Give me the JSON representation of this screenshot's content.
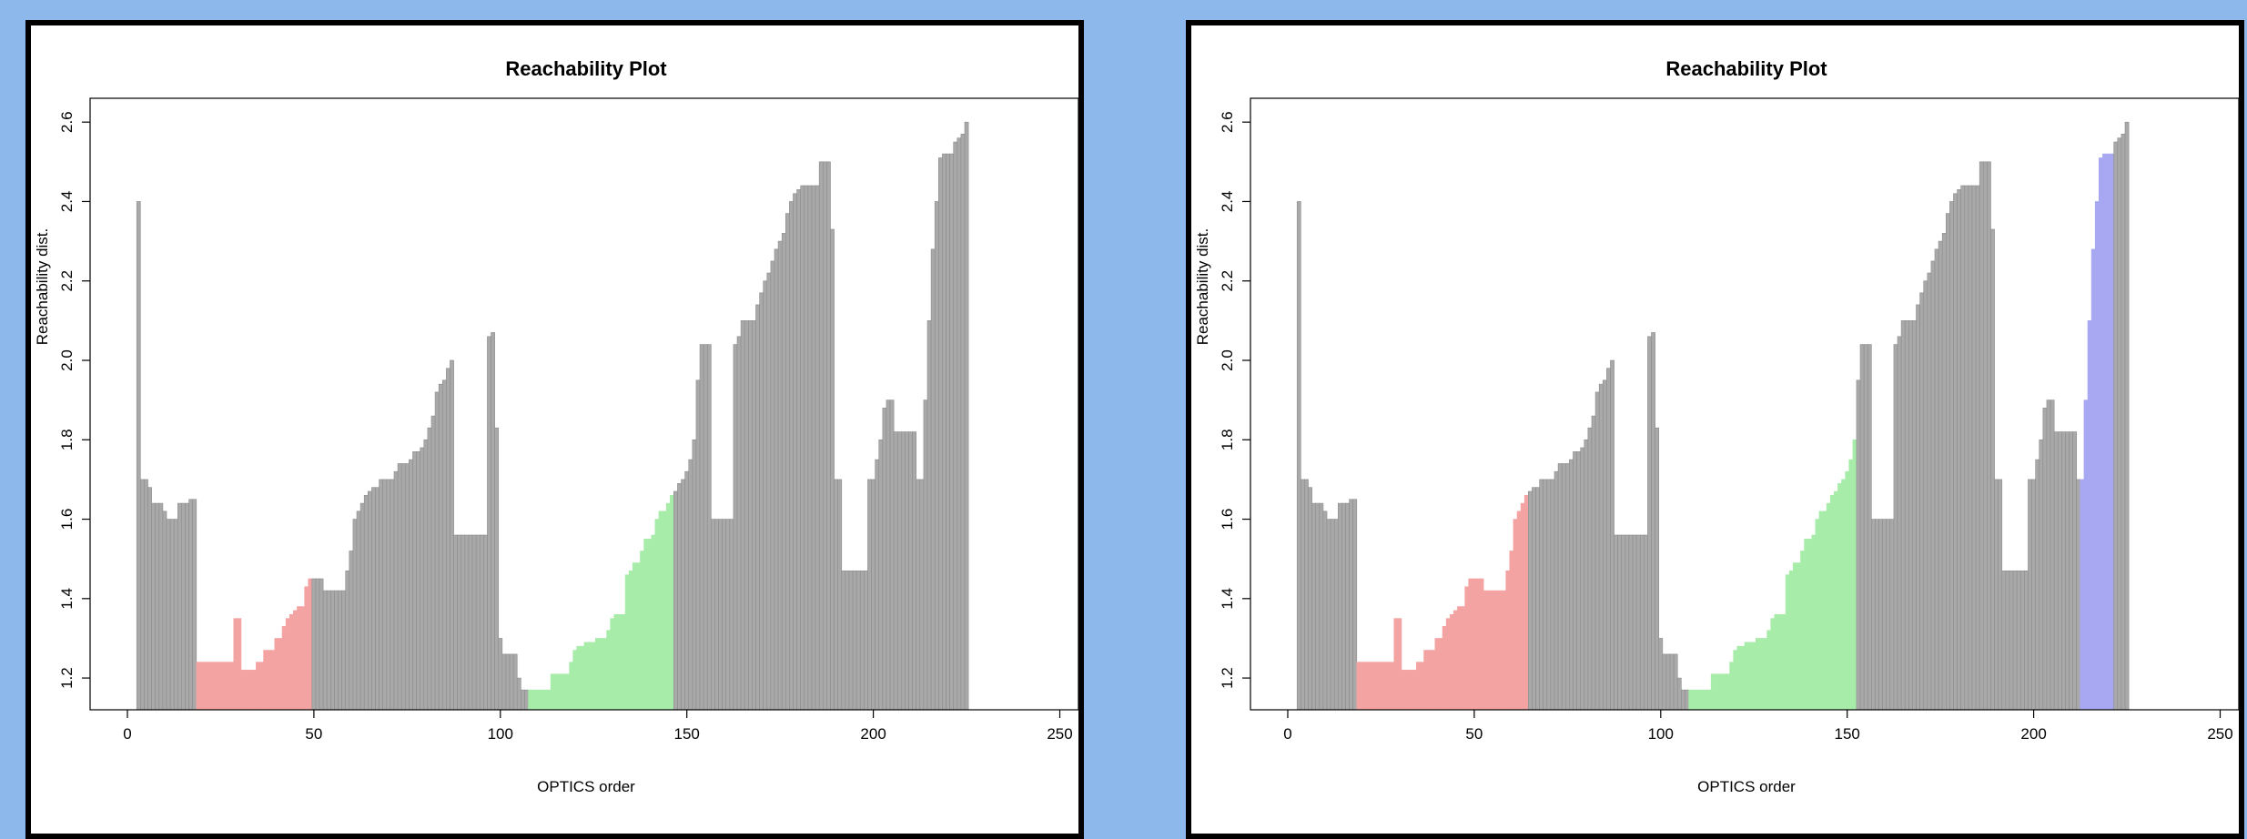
{
  "chart_data": [
    {
      "type": "bar",
      "title": "Reachability Plot",
      "xlabel": "OPTICS order",
      "ylabel": "Reachability dist.",
      "xlim": [
        -10,
        255
      ],
      "ylim": [
        1.12,
        2.66
      ],
      "xticks": [
        0,
        50,
        100,
        150,
        200,
        250
      ],
      "yticks": [
        1.2,
        1.4,
        1.6,
        1.8,
        2.0,
        2.2,
        2.4,
        2.6
      ],
      "x_start": 3,
      "values": [
        2.4,
        1.7,
        1.7,
        1.68,
        1.64,
        1.64,
        1.64,
        1.62,
        1.6,
        1.6,
        1.6,
        1.64,
        1.64,
        1.64,
        1.65,
        1.65,
        1.24,
        1.24,
        1.24,
        1.24,
        1.24,
        1.24,
        1.24,
        1.24,
        1.24,
        1.24,
        1.35,
        1.35,
        1.22,
        1.22,
        1.22,
        1.22,
        1.24,
        1.24,
        1.27,
        1.27,
        1.27,
        1.3,
        1.3,
        1.33,
        1.35,
        1.36,
        1.37,
        1.38,
        1.38,
        1.43,
        1.45,
        1.45,
        1.45,
        1.45,
        1.42,
        1.42,
        1.42,
        1.42,
        1.42,
        1.42,
        1.47,
        1.52,
        1.6,
        1.62,
        1.64,
        1.66,
        1.67,
        1.68,
        1.68,
        1.7,
        1.7,
        1.7,
        1.7,
        1.72,
        1.74,
        1.74,
        1.74,
        1.75,
        1.77,
        1.77,
        1.78,
        1.8,
        1.83,
        1.86,
        1.92,
        1.94,
        1.95,
        1.98,
        2.0,
        1.56,
        1.56,
        1.56,
        1.56,
        1.56,
        1.56,
        1.56,
        1.56,
        1.56,
        2.06,
        2.07,
        1.83,
        1.3,
        1.26,
        1.26,
        1.26,
        1.26,
        1.2,
        1.17,
        1.17,
        1.17,
        1.17,
        1.17,
        1.17,
        1.17,
        1.17,
        1.21,
        1.21,
        1.21,
        1.21,
        1.21,
        1.24,
        1.27,
        1.28,
        1.28,
        1.29,
        1.29,
        1.29,
        1.3,
        1.3,
        1.3,
        1.32,
        1.35,
        1.36,
        1.36,
        1.36,
        1.46,
        1.47,
        1.49,
        1.49,
        1.52,
        1.55,
        1.55,
        1.56,
        1.6,
        1.62,
        1.62,
        1.64,
        1.66,
        1.67,
        1.69,
        1.7,
        1.72,
        1.75,
        1.8,
        1.95,
        2.04,
        2.04,
        2.04,
        1.6,
        1.6,
        1.6,
        1.6,
        1.6,
        1.6,
        2.04,
        2.06,
        2.1,
        2.1,
        2.1,
        2.1,
        2.14,
        2.17,
        2.2,
        2.22,
        2.25,
        2.28,
        2.3,
        2.32,
        2.37,
        2.4,
        2.42,
        2.43,
        2.44,
        2.44,
        2.44,
        2.44,
        2.44,
        2.5,
        2.5,
        2.5,
        2.33,
        1.7,
        1.7,
        1.47,
        1.47,
        1.47,
        1.47,
        1.47,
        1.47,
        1.47,
        1.7,
        1.7,
        1.75,
        1.8,
        1.88,
        1.9,
        1.9,
        1.82,
        1.82,
        1.82,
        1.82,
        1.82,
        1.82,
        1.7,
        1.7,
        1.9,
        2.1,
        2.28,
        2.4,
        2.51,
        2.52,
        2.52,
        2.52,
        2.55,
        2.56,
        2.57,
        2.6
      ],
      "cluster_segments": [
        {
          "from": 19,
          "to": 49,
          "color": "#f4a3a3"
        },
        {
          "from": 108,
          "to": 146,
          "color": "#a8ecaa"
        }
      ],
      "default_bar_color": "#a9a9a9",
      "grid": false
    },
    {
      "type": "bar",
      "title": "Reachability Plot",
      "xlabel": "OPTICS order",
      "ylabel": "Reachability dist.",
      "xlim": [
        -10,
        255
      ],
      "ylim": [
        1.12,
        2.66
      ],
      "xticks": [
        0,
        50,
        100,
        150,
        200,
        250
      ],
      "yticks": [
        1.2,
        1.4,
        1.6,
        1.8,
        2.0,
        2.2,
        2.4,
        2.6
      ],
      "x_start": 3,
      "values": [
        2.4,
        1.7,
        1.7,
        1.68,
        1.64,
        1.64,
        1.64,
        1.62,
        1.6,
        1.6,
        1.6,
        1.64,
        1.64,
        1.64,
        1.65,
        1.65,
        1.24,
        1.24,
        1.24,
        1.24,
        1.24,
        1.24,
        1.24,
        1.24,
        1.24,
        1.24,
        1.35,
        1.35,
        1.22,
        1.22,
        1.22,
        1.22,
        1.24,
        1.24,
        1.27,
        1.27,
        1.27,
        1.3,
        1.3,
        1.33,
        1.35,
        1.36,
        1.37,
        1.38,
        1.38,
        1.43,
        1.45,
        1.45,
        1.45,
        1.45,
        1.42,
        1.42,
        1.42,
        1.42,
        1.42,
        1.42,
        1.47,
        1.52,
        1.6,
        1.62,
        1.64,
        1.66,
        1.67,
        1.68,
        1.68,
        1.7,
        1.7,
        1.7,
        1.7,
        1.72,
        1.74,
        1.74,
        1.74,
        1.75,
        1.77,
        1.77,
        1.78,
        1.8,
        1.83,
        1.86,
        1.92,
        1.94,
        1.95,
        1.98,
        2.0,
        1.56,
        1.56,
        1.56,
        1.56,
        1.56,
        1.56,
        1.56,
        1.56,
        1.56,
        2.06,
        2.07,
        1.83,
        1.3,
        1.26,
        1.26,
        1.26,
        1.26,
        1.2,
        1.17,
        1.17,
        1.17,
        1.17,
        1.17,
        1.17,
        1.17,
        1.17,
        1.21,
        1.21,
        1.21,
        1.21,
        1.21,
        1.24,
        1.27,
        1.28,
        1.28,
        1.29,
        1.29,
        1.29,
        1.3,
        1.3,
        1.3,
        1.32,
        1.35,
        1.36,
        1.36,
        1.36,
        1.46,
        1.47,
        1.49,
        1.49,
        1.52,
        1.55,
        1.55,
        1.56,
        1.6,
        1.62,
        1.62,
        1.64,
        1.66,
        1.67,
        1.69,
        1.7,
        1.72,
        1.75,
        1.8,
        1.95,
        2.04,
        2.04,
        2.04,
        1.6,
        1.6,
        1.6,
        1.6,
        1.6,
        1.6,
        2.04,
        2.06,
        2.1,
        2.1,
        2.1,
        2.1,
        2.14,
        2.17,
        2.2,
        2.22,
        2.25,
        2.28,
        2.3,
        2.32,
        2.37,
        2.4,
        2.42,
        2.43,
        2.44,
        2.44,
        2.44,
        2.44,
        2.44,
        2.5,
        2.5,
        2.5,
        2.33,
        1.7,
        1.7,
        1.47,
        1.47,
        1.47,
        1.47,
        1.47,
        1.47,
        1.47,
        1.7,
        1.7,
        1.75,
        1.8,
        1.88,
        1.9,
        1.9,
        1.82,
        1.82,
        1.82,
        1.82,
        1.82,
        1.82,
        1.7,
        1.7,
        1.9,
        2.1,
        2.28,
        2.4,
        2.51,
        2.52,
        2.52,
        2.52,
        2.55,
        2.56,
        2.57,
        2.6
      ],
      "cluster_segments": [
        {
          "from": 19,
          "to": 64,
          "color": "#f4a3a3"
        },
        {
          "from": 108,
          "to": 152,
          "color": "#a8ecaa"
        },
        {
          "from": 213,
          "to": 221,
          "color": "#a8a8f2"
        }
      ],
      "default_bar_color": "#a9a9a9",
      "grid": false
    }
  ]
}
